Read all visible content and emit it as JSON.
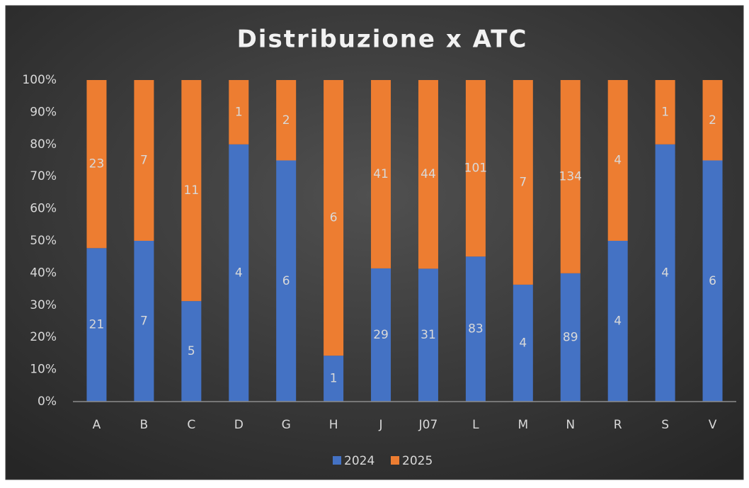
{
  "chart_data": {
    "type": "bar",
    "stacking": "percent",
    "title": "Distribuzione x ATC",
    "categories": [
      "A",
      "B",
      "C",
      "D",
      "G",
      "H",
      "J",
      "J07",
      "L",
      "M",
      "N",
      "R",
      "S",
      "V"
    ],
    "series": [
      {
        "name": "2024",
        "color": "#4472c4",
        "values": [
          21,
          7,
          5,
          4,
          6,
          1,
          29,
          31,
          83,
          4,
          89,
          4,
          4,
          6
        ]
      },
      {
        "name": "2025",
        "color": "#ed7d31",
        "values": [
          23,
          7,
          11,
          1,
          2,
          6,
          41,
          44,
          101,
          7,
          134,
          4,
          1,
          2
        ]
      }
    ],
    "ylim": [
      0,
      100
    ],
    "yticks": [
      {
        "value": 0,
        "label": "0%"
      },
      {
        "value": 10,
        "label": "10%"
      },
      {
        "value": 20,
        "label": "20%"
      },
      {
        "value": 30,
        "label": "30%"
      },
      {
        "value": 40,
        "label": "40%"
      },
      {
        "value": 50,
        "label": "50%"
      },
      {
        "value": 60,
        "label": "60%"
      },
      {
        "value": 70,
        "label": "70%"
      },
      {
        "value": 80,
        "label": "80%"
      },
      {
        "value": 90,
        "label": "90%"
      },
      {
        "value": 100,
        "label": "100%"
      }
    ],
    "grid": false,
    "legend": "bottom"
  }
}
